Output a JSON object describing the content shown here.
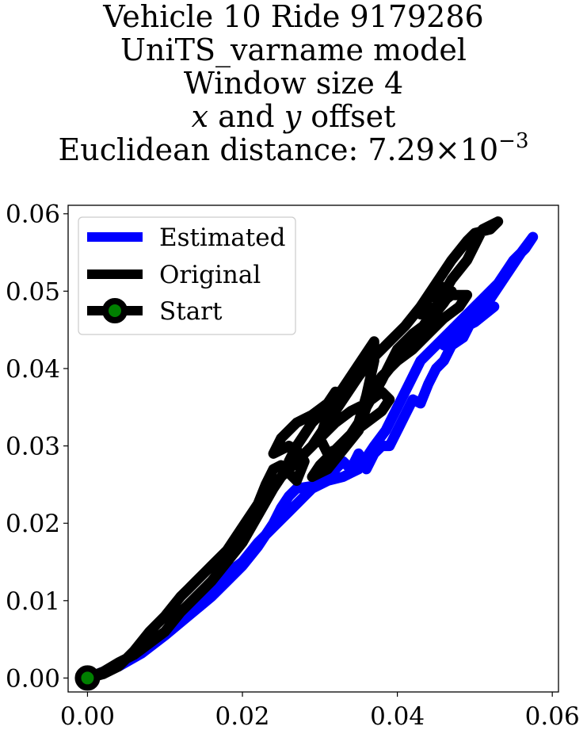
{
  "title": {
    "line1": "Vehicle 10 Ride 9179286",
    "line2": "UniTS_varname model",
    "line3": "Window size 4",
    "line4": {
      "x": "x",
      "and": " and ",
      "y": "y",
      "rest": " offset"
    },
    "line5": {
      "prefix": "Euclidean distance: 7.29×10",
      "exponent": "−3"
    }
  },
  "chart_data": {
    "type": "line",
    "xlim": [
      -0.0025,
      0.0608
    ],
    "ylim": [
      -0.0018,
      0.0611
    ],
    "xticks": [
      0.0,
      0.02,
      0.04,
      0.06
    ],
    "xtick_labels": [
      "0.00",
      "0.02",
      "0.04",
      "0.06"
    ],
    "yticks": [
      0.0,
      0.01,
      0.02,
      0.03,
      0.04,
      0.05,
      0.06
    ],
    "ytick_labels": [
      "0.00",
      "0.01",
      "0.02",
      "0.03",
      "0.04",
      "0.05",
      "0.06"
    ],
    "grid": false,
    "legend": "upper-left",
    "colors": {
      "estimated": "#0000ff",
      "original": "#000000",
      "start_marker": "#008000"
    },
    "series": [
      {
        "name": "Estimated",
        "points": [
          [
            0.0,
            0.0
          ],
          [
            0.003,
            0.0012
          ],
          [
            0.006,
            0.003
          ],
          [
            0.007,
            0.0035
          ],
          [
            0.01,
            0.0055
          ],
          [
            0.013,
            0.0085
          ],
          [
            0.016,
            0.0115
          ],
          [
            0.018,
            0.0135
          ],
          [
            0.02,
            0.015
          ],
          [
            0.022,
            0.0175
          ],
          [
            0.024,
            0.0195
          ],
          [
            0.026,
            0.0215
          ],
          [
            0.029,
            0.0245
          ],
          [
            0.031,
            0.0255
          ],
          [
            0.032,
            0.027
          ],
          [
            0.033,
            0.028
          ],
          [
            0.034,
            0.027
          ],
          [
            0.035,
            0.029
          ],
          [
            0.036,
            0.027
          ],
          [
            0.037,
            0.029
          ],
          [
            0.038,
            0.03
          ],
          [
            0.039,
            0.03
          ],
          [
            0.04,
            0.032
          ],
          [
            0.041,
            0.034
          ],
          [
            0.042,
            0.036
          ],
          [
            0.043,
            0.0355
          ],
          [
            0.044,
            0.038
          ],
          [
            0.045,
            0.04
          ],
          [
            0.046,
            0.041
          ],
          [
            0.047,
            0.043
          ],
          [
            0.0485,
            0.044
          ],
          [
            0.0495,
            0.046
          ],
          [
            0.05,
            0.047
          ],
          [
            0.0525,
            0.048
          ],
          [
            0.05,
            0.046
          ],
          [
            0.048,
            0.045
          ],
          [
            0.046,
            0.043
          ],
          [
            0.048,
            0.044
          ],
          [
            0.05,
            0.047
          ],
          [
            0.052,
            0.049
          ],
          [
            0.054,
            0.052
          ],
          [
            0.056,
            0.055
          ],
          [
            0.0575,
            0.057
          ],
          [
            0.0565,
            0.0555
          ],
          [
            0.055,
            0.054
          ],
          [
            0.053,
            0.051
          ],
          [
            0.051,
            0.049
          ],
          [
            0.049,
            0.047
          ],
          [
            0.047,
            0.045
          ],
          [
            0.045,
            0.043
          ],
          [
            0.043,
            0.041
          ],
          [
            0.042,
            0.039
          ],
          [
            0.041,
            0.037
          ],
          [
            0.04,
            0.035
          ],
          [
            0.039,
            0.033
          ],
          [
            0.0385,
            0.032
          ],
          [
            0.037,
            0.03
          ],
          [
            0.036,
            0.0285
          ],
          [
            0.035,
            0.027
          ],
          [
            0.034,
            0.0265
          ],
          [
            0.033,
            0.026
          ],
          [
            0.031,
            0.0255
          ],
          [
            0.03,
            0.0255
          ],
          [
            0.029,
            0.0248
          ],
          [
            0.027,
            0.0245
          ],
          [
            0.026,
            0.0235
          ],
          [
            0.025,
            0.022
          ],
          [
            0.024,
            0.02
          ],
          [
            0.022,
            0.017
          ],
          [
            0.02,
            0.0145
          ],
          [
            0.018,
            0.0125
          ],
          [
            0.016,
            0.0105
          ],
          [
            0.013,
            0.008
          ],
          [
            0.01,
            0.0055
          ],
          [
            0.007,
            0.0032
          ],
          [
            0.004,
            0.0015
          ],
          [
            0.002,
            0.0008
          ],
          [
            0.0,
            0.0
          ]
        ]
      },
      {
        "name": "Original",
        "points": [
          [
            0.0,
            0.0
          ],
          [
            0.002,
            0.0005
          ],
          [
            0.004,
            0.0015
          ],
          [
            0.006,
            0.0035
          ],
          [
            0.008,
            0.006
          ],
          [
            0.01,
            0.008
          ],
          [
            0.012,
            0.0105
          ],
          [
            0.013,
            0.0115
          ],
          [
            0.014,
            0.0125
          ],
          [
            0.016,
            0.0145
          ],
          [
            0.018,
            0.0165
          ],
          [
            0.02,
            0.0195
          ],
          [
            0.022,
            0.0225
          ],
          [
            0.023,
            0.025
          ],
          [
            0.024,
            0.027
          ],
          [
            0.025,
            0.0275
          ],
          [
            0.026,
            0.0265
          ],
          [
            0.027,
            0.0255
          ],
          [
            0.028,
            0.028
          ],
          [
            0.027,
            0.0295
          ],
          [
            0.026,
            0.03
          ],
          [
            0.024,
            0.029
          ],
          [
            0.025,
            0.031
          ],
          [
            0.027,
            0.033
          ],
          [
            0.029,
            0.034
          ],
          [
            0.031,
            0.0355
          ],
          [
            0.032,
            0.037
          ],
          [
            0.031,
            0.034
          ],
          [
            0.03,
            0.031
          ],
          [
            0.031,
            0.029
          ],
          [
            0.033,
            0.03
          ],
          [
            0.035,
            0.033
          ],
          [
            0.036,
            0.0365
          ],
          [
            0.037,
            0.041
          ],
          [
            0.037,
            0.0435
          ],
          [
            0.036,
            0.042
          ],
          [
            0.034,
            0.039
          ],
          [
            0.032,
            0.036
          ],
          [
            0.029,
            0.033
          ],
          [
            0.027,
            0.03
          ],
          [
            0.026,
            0.028
          ],
          [
            0.028,
            0.029
          ],
          [
            0.03,
            0.031
          ],
          [
            0.032,
            0.033
          ],
          [
            0.034,
            0.0345
          ],
          [
            0.036,
            0.0355
          ],
          [
            0.038,
            0.037
          ],
          [
            0.039,
            0.036
          ],
          [
            0.038,
            0.0345
          ],
          [
            0.036,
            0.033
          ],
          [
            0.034,
            0.0315
          ],
          [
            0.032,
            0.0295
          ],
          [
            0.03,
            0.0275
          ],
          [
            0.029,
            0.026
          ],
          [
            0.03,
            0.0265
          ],
          [
            0.031,
            0.027
          ],
          [
            0.033,
            0.0295
          ],
          [
            0.035,
            0.032
          ],
          [
            0.036,
            0.035
          ],
          [
            0.038,
            0.0385
          ],
          [
            0.039,
            0.0405
          ],
          [
            0.04,
            0.0425
          ],
          [
            0.042,
            0.0445
          ],
          [
            0.044,
            0.046
          ],
          [
            0.046,
            0.0485
          ],
          [
            0.047,
            0.05
          ],
          [
            0.046,
            0.0505
          ],
          [
            0.044,
            0.049
          ],
          [
            0.043,
            0.047
          ],
          [
            0.045,
            0.048
          ],
          [
            0.047,
            0.0495
          ],
          [
            0.049,
            0.0495
          ],
          [
            0.048,
            0.048
          ],
          [
            0.046,
            0.0465
          ],
          [
            0.044,
            0.0445
          ],
          [
            0.042,
            0.0425
          ],
          [
            0.04,
            0.041
          ],
          [
            0.038,
            0.039
          ],
          [
            0.037,
            0.0375
          ],
          [
            0.039,
            0.04
          ],
          [
            0.041,
            0.0425
          ],
          [
            0.043,
            0.045
          ],
          [
            0.045,
            0.048
          ],
          [
            0.047,
            0.0515
          ],
          [
            0.049,
            0.054
          ],
          [
            0.05,
            0.056
          ],
          [
            0.051,
            0.058
          ],
          [
            0.053,
            0.059
          ],
          [
            0.052,
            0.058
          ],
          [
            0.05,
            0.0575
          ],
          [
            0.049,
            0.0565
          ],
          [
            0.047,
            0.054
          ],
          [
            0.045,
            0.051
          ],
          [
            0.043,
            0.048
          ],
          [
            0.041,
            0.0455
          ],
          [
            0.039,
            0.0435
          ],
          [
            0.037,
            0.0415
          ],
          [
            0.035,
            0.039
          ],
          [
            0.033,
            0.036
          ],
          [
            0.031,
            0.033
          ],
          [
            0.029,
            0.03
          ],
          [
            0.027,
            0.028
          ],
          [
            0.025,
            0.026
          ],
          [
            0.024,
            0.0245
          ],
          [
            0.022,
            0.021
          ],
          [
            0.02,
            0.0175
          ],
          [
            0.018,
            0.015
          ],
          [
            0.016,
            0.0125
          ],
          [
            0.014,
            0.0105
          ],
          [
            0.012,
            0.0085
          ],
          [
            0.01,
            0.006
          ],
          [
            0.008,
            0.0045
          ],
          [
            0.006,
            0.003
          ],
          [
            0.004,
            0.002
          ],
          [
            0.002,
            0.0008
          ],
          [
            0.0,
            0.0
          ]
        ]
      },
      {
        "name": "Start",
        "points": [
          [
            0.0,
            0.0
          ]
        ]
      }
    ]
  }
}
